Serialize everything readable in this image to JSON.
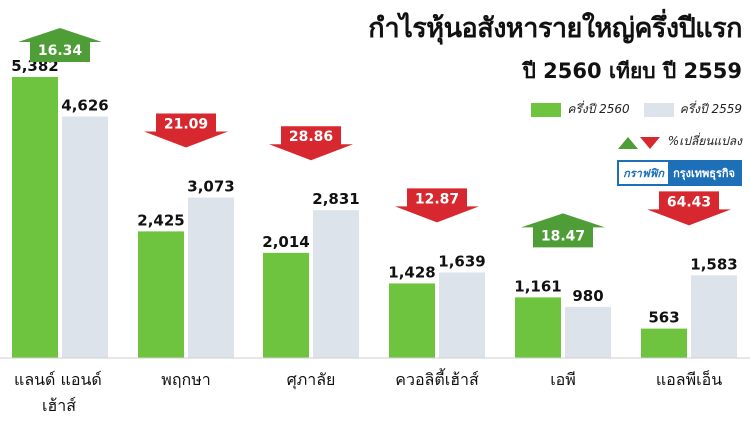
{
  "chart_data": {
    "type": "bar",
    "title": "กำไรหุ้นอสังหารายใหญ่ครึ่งปีแรก",
    "subtitle": "ปี 2560 เทียบ ปี 2559",
    "categories": [
      "แลนด์ แอนด์ เฮ้าส์",
      "พฤกษา",
      "ศุภาลัย",
      "ควอลิตี้เฮ้าส์",
      "เอพี",
      "แอลพีเอ็น"
    ],
    "series": [
      {
        "name": "ครึ่งปี 2560",
        "color": "#6ec33f",
        "values": [
          5382,
          2425,
          2014,
          1428,
          1161,
          563
        ]
      },
      {
        "name": "ครึ่งปี 2559",
        "color": "#dde3ea",
        "values": [
          4626,
          3073,
          2831,
          1639,
          980,
          1583
        ]
      }
    ],
    "value_labels": [
      [
        "5,382",
        "2,425",
        "2,014",
        "1,428",
        "1,161",
        "563"
      ],
      [
        "4,626",
        "3,073",
        "2,831",
        "1,639",
        "980",
        "1,583"
      ]
    ],
    "pct_change": [
      "16.34",
      "21.09",
      "28.86",
      "12.87",
      "18.47",
      "64.43"
    ],
    "pct_direction": [
      "up",
      "down",
      "down",
      "down",
      "up",
      "down"
    ],
    "ylim": [
      0,
      5600
    ],
    "grid": false,
    "legend": "right",
    "legend_change_label": "%เปลี่ยนแปลง",
    "up_color": "#4f9d37",
    "down_color": "#d7282f"
  },
  "credit": {
    "part1": "กราฟฟิก",
    "part2": "กรุงเทพธุรกิจ",
    "color": "#1d6fb8"
  }
}
